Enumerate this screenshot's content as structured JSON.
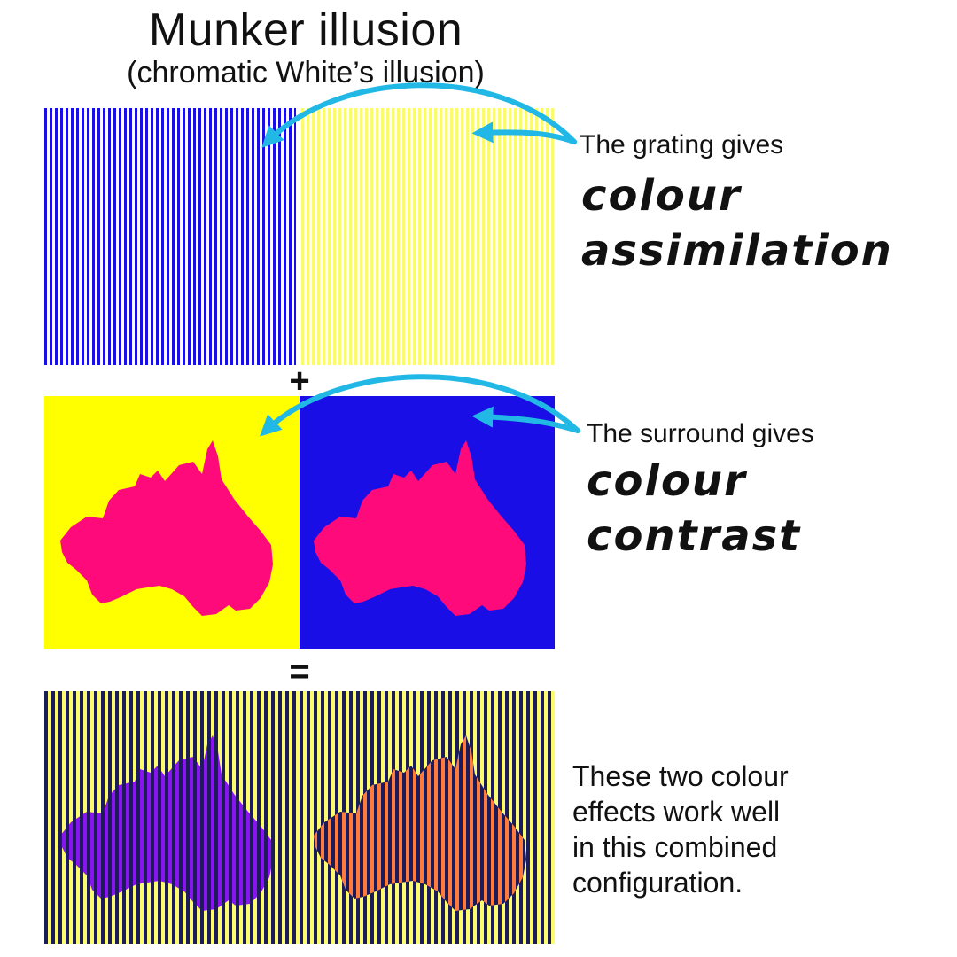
{
  "title": "Munker illusion",
  "subtitle": "(chromatic White’s illusion)",
  "colors": {
    "blue": "#1a0ee6",
    "yellow": "#fbfb6e",
    "bright_yellow": "#ffff00",
    "magenta": "#ff0a7a",
    "violet": "#8a14f0",
    "orange": "#ff7a3c",
    "dark_stripe": "#1c1c5a",
    "arrow": "#22b8e6"
  },
  "grating_section": {
    "caption_lead": "The grating gives",
    "caption_term": [
      "colour",
      "assimilation"
    ]
  },
  "plus_sign": "+",
  "surround_section": {
    "caption_lead": "The surround gives",
    "caption_term": [
      "colour",
      "contrast"
    ]
  },
  "equals_sign": "=",
  "combined_section": {
    "caption": [
      "These two colour",
      "effects work well",
      "in this combined",
      "configuration."
    ]
  }
}
